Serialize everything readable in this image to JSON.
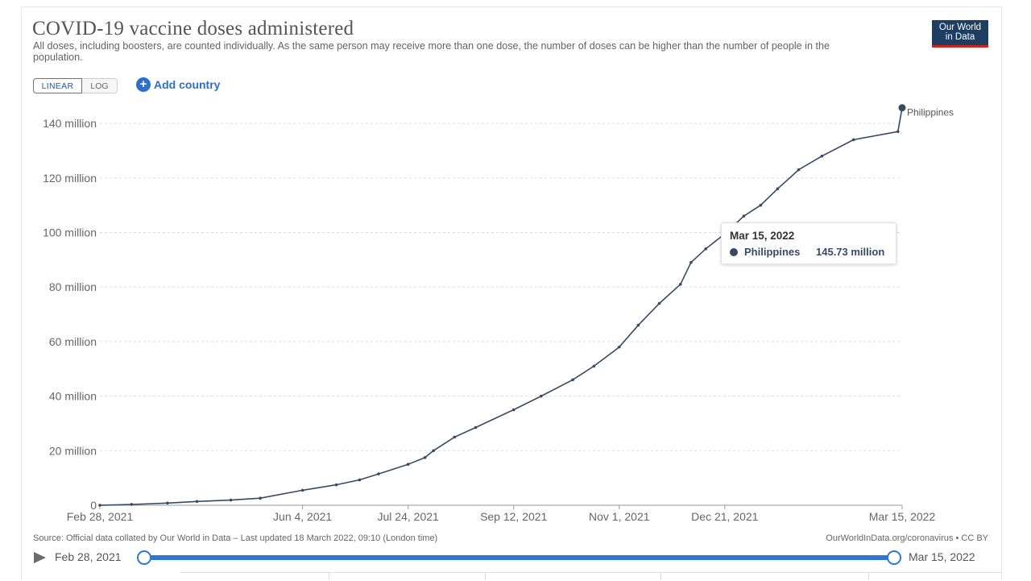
{
  "title": "COVID-19 vaccine doses administered",
  "subtitle": "All doses, including boosters, are counted individually. As the same person may receive more than one dose, the number of doses can be higher than the number of people in the population.",
  "logo": {
    "line1": "Our World",
    "line2": "in Data",
    "bg_color": "#1d3d63",
    "accent_color": "#ce261e"
  },
  "controls": {
    "linear_label": "LINEAR",
    "log_label": "LOG",
    "selected_scale": "linear",
    "add_country_label": "Add country",
    "add_icon": "plus-circle-icon"
  },
  "tooltip": {
    "date": "Mar 15, 2022",
    "series": "Philippines",
    "value": "145.73 million"
  },
  "source": "Source: Official data collated by Our World in Data – Last updated 18 March 2022, 09:10 (London time)",
  "license": "OurWorldInData.org/coronavirus • CC BY",
  "timeline": {
    "start": "Feb 28, 2021",
    "end": "Mar 15, 2022",
    "play_icon": "play-icon"
  },
  "chart_data": {
    "type": "line",
    "title": "COVID-19 vaccine doses administered",
    "x_is_date": true,
    "xlim": [
      "2021-02-28",
      "2022-03-15"
    ],
    "x_ticks": [
      "2021-02-28",
      "2021-06-04",
      "2021-07-24",
      "2021-09-12",
      "2021-11-01",
      "2021-12-21",
      "2022-03-15"
    ],
    "x_tick_labels": [
      "Feb 28, 2021",
      "Jun 4, 2021",
      "Jul 24, 2021",
      "Sep 12, 2021",
      "Nov 1, 2021",
      "Dec 21, 2021",
      "Mar 15, 2022"
    ],
    "ylim": [
      0,
      140000000
    ],
    "y_ticks": [
      0,
      20000000,
      40000000,
      60000000,
      80000000,
      100000000,
      120000000,
      140000000
    ],
    "y_tick_labels": [
      "0",
      "20 million",
      "40 million",
      "60 million",
      "80 million",
      "100 million",
      "120 million",
      "140 million"
    ],
    "grid": true,
    "series": [
      {
        "name": "Philippines",
        "color": "#374a63",
        "points": [
          [
            "2021-02-28",
            0
          ],
          [
            "2021-03-15",
            300000
          ],
          [
            "2021-04-01",
            800000
          ],
          [
            "2021-04-15",
            1400000
          ],
          [
            "2021-05-01",
            1900000
          ],
          [
            "2021-05-15",
            2600000
          ],
          [
            "2021-06-04",
            5500000
          ],
          [
            "2021-06-20",
            7500000
          ],
          [
            "2021-07-01",
            9300000
          ],
          [
            "2021-07-10",
            11500000
          ],
          [
            "2021-07-24",
            15000000
          ],
          [
            "2021-08-01",
            17500000
          ],
          [
            "2021-08-05",
            20000000
          ],
          [
            "2021-08-15",
            25000000
          ],
          [
            "2021-08-25",
            28500000
          ],
          [
            "2021-09-12",
            35000000
          ],
          [
            "2021-09-25",
            40000000
          ],
          [
            "2021-10-10",
            46000000
          ],
          [
            "2021-10-20",
            51000000
          ],
          [
            "2021-11-01",
            58000000
          ],
          [
            "2021-11-10",
            66000000
          ],
          [
            "2021-11-20",
            74000000
          ],
          [
            "2021-11-30",
            81000000
          ],
          [
            "2021-12-05",
            89000000
          ],
          [
            "2021-12-12",
            94000000
          ],
          [
            "2021-12-21",
            99500000
          ],
          [
            "2021-12-30",
            106000000
          ],
          [
            "2022-01-07",
            110000000
          ],
          [
            "2022-01-15",
            116000000
          ],
          [
            "2022-01-25",
            123000000
          ],
          [
            "2022-02-05",
            128000000
          ],
          [
            "2022-02-20",
            134000000
          ],
          [
            "2022-03-13",
            137000000
          ],
          [
            "2022-03-15",
            145730000
          ]
        ]
      }
    ]
  }
}
